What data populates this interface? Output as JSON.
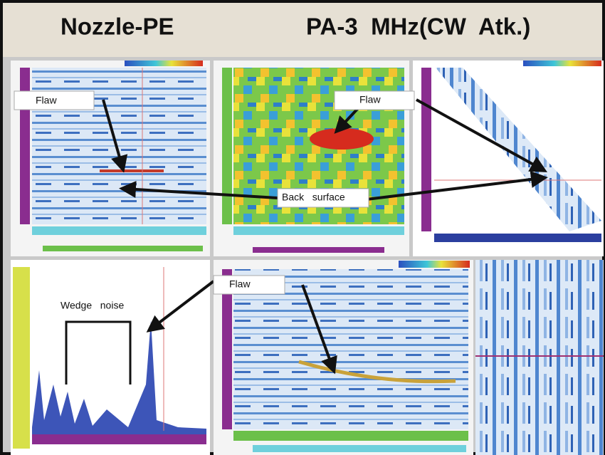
{
  "header": {
    "title_left": "Nozzle-PE",
    "title_right": "PA-3  MHz(CW  Atk.)"
  },
  "annotations": [
    {
      "label": "Flaw"
    },
    {
      "label": "Flaw"
    },
    {
      "label": "Back   surface"
    },
    {
      "label": "Flaw"
    },
    {
      "label": "Wedge   noise"
    }
  ]
}
